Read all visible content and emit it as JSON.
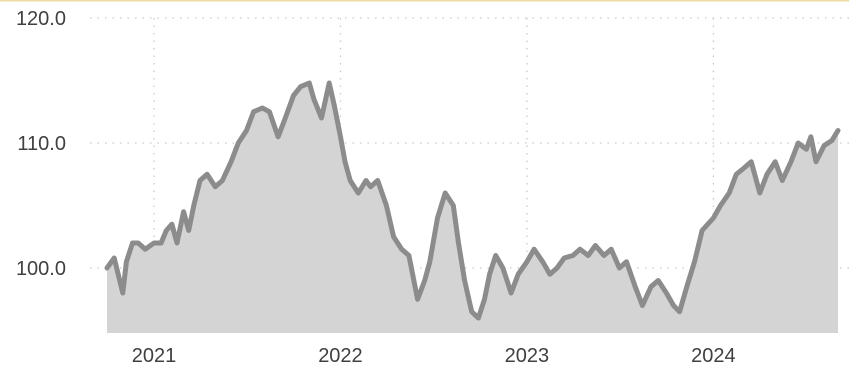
{
  "chart_data": {
    "type": "area",
    "title": "",
    "xlabel": "",
    "ylabel": "",
    "x_ticks": [
      "2021",
      "2022",
      "2023",
      "2024"
    ],
    "y_ticks": [
      "120.0",
      "110.0",
      "100.0"
    ],
    "ylim": [
      94.8,
      120.0
    ],
    "xlim": [
      "2020-10-01",
      "2024-09-01"
    ],
    "grid": true,
    "legend": "none",
    "colors": {
      "line": "#8c8c8c",
      "area": "#d4d4d4",
      "grid": "#c9c9c9",
      "text": "#404040",
      "top_border": "#ecdca2"
    },
    "series": [
      {
        "x": [
          "2020-10-01",
          "2020-10-15",
          "2020-11-01",
          "2020-11-08",
          "2020-11-20",
          "2020-12-01",
          "2020-12-15",
          "2021-01-01",
          "2021-01-15",
          "2021-01-25",
          "2021-02-05",
          "2021-02-15",
          "2021-02-28",
          "2021-03-10",
          "2021-03-20",
          "2021-04-01",
          "2021-04-15",
          "2021-05-01",
          "2021-05-15",
          "2021-06-01",
          "2021-06-15",
          "2021-07-01",
          "2021-07-15",
          "2021-08-01",
          "2021-08-15",
          "2021-09-01",
          "2021-09-15",
          "2021-10-01",
          "2021-10-15",
          "2021-11-01",
          "2021-11-10",
          "2021-11-25",
          "2021-12-10",
          "2021-12-20",
          "2022-01-01",
          "2022-01-10",
          "2022-01-20",
          "2022-02-05",
          "2022-02-20",
          "2022-03-01",
          "2022-03-15",
          "2022-04-01",
          "2022-04-15",
          "2022-05-01",
          "2022-05-15",
          "2022-06-01",
          "2022-06-15",
          "2022-06-25",
          "2022-07-10",
          "2022-07-25",
          "2022-08-10",
          "2022-08-20",
          "2022-09-01",
          "2022-09-15",
          "2022-09-28",
          "2022-10-10",
          "2022-10-20",
          "2022-11-01",
          "2022-11-15",
          "2022-12-01",
          "2022-12-15",
          "2023-01-01",
          "2023-01-15",
          "2023-02-01",
          "2023-02-15",
          "2023-03-01",
          "2023-03-15",
          "2023-04-01",
          "2023-04-15",
          "2023-05-01",
          "2023-05-15",
          "2023-06-01",
          "2023-06-15",
          "2023-07-01",
          "2023-07-15",
          "2023-08-01",
          "2023-08-15",
          "2023-09-01",
          "2023-09-15",
          "2023-10-01",
          "2023-10-15",
          "2023-10-27",
          "2023-11-10",
          "2023-11-25",
          "2023-12-10",
          "2024-01-01",
          "2024-01-15",
          "2024-02-01",
          "2024-02-15",
          "2024-03-01",
          "2024-03-15",
          "2024-04-01",
          "2024-04-15",
          "2024-05-01",
          "2024-05-15",
          "2024-06-01",
          "2024-06-15",
          "2024-07-01",
          "2024-07-10",
          "2024-07-20",
          "2024-08-05",
          "2024-08-20",
          "2024-09-01"
        ],
        "values": [
          100.0,
          100.8,
          98.0,
          100.5,
          102.0,
          102.0,
          101.5,
          102.0,
          102.0,
          103.0,
          103.5,
          102.0,
          104.5,
          103.0,
          105.0,
          107.0,
          107.5,
          106.5,
          107.0,
          108.5,
          110.0,
          111.0,
          112.5,
          112.8,
          112.5,
          110.5,
          112.0,
          113.8,
          114.5,
          114.8,
          113.5,
          112.0,
          114.8,
          113.0,
          110.5,
          108.5,
          107.0,
          106.0,
          107.0,
          106.5,
          107.0,
          105.0,
          102.5,
          101.5,
          101.0,
          97.5,
          99.0,
          100.5,
          104.0,
          106.0,
          105.0,
          102.0,
          99.0,
          96.5,
          96.0,
          97.5,
          99.5,
          101.0,
          100.0,
          98.0,
          99.5,
          100.5,
          101.5,
          100.5,
          99.5,
          100.0,
          100.8,
          101.0,
          101.5,
          101.0,
          101.8,
          101.0,
          101.5,
          100.0,
          100.5,
          98.5,
          97.0,
          98.5,
          99.0,
          98.0,
          97.0,
          96.5,
          98.5,
          100.5,
          103.0,
          104.0,
          105.0,
          106.0,
          107.5,
          108.0,
          108.5,
          106.0,
          107.5,
          108.5,
          107.0,
          108.5,
          110.0,
          109.5,
          110.5,
          108.5,
          109.8,
          110.2,
          111.0
        ]
      }
    ]
  }
}
